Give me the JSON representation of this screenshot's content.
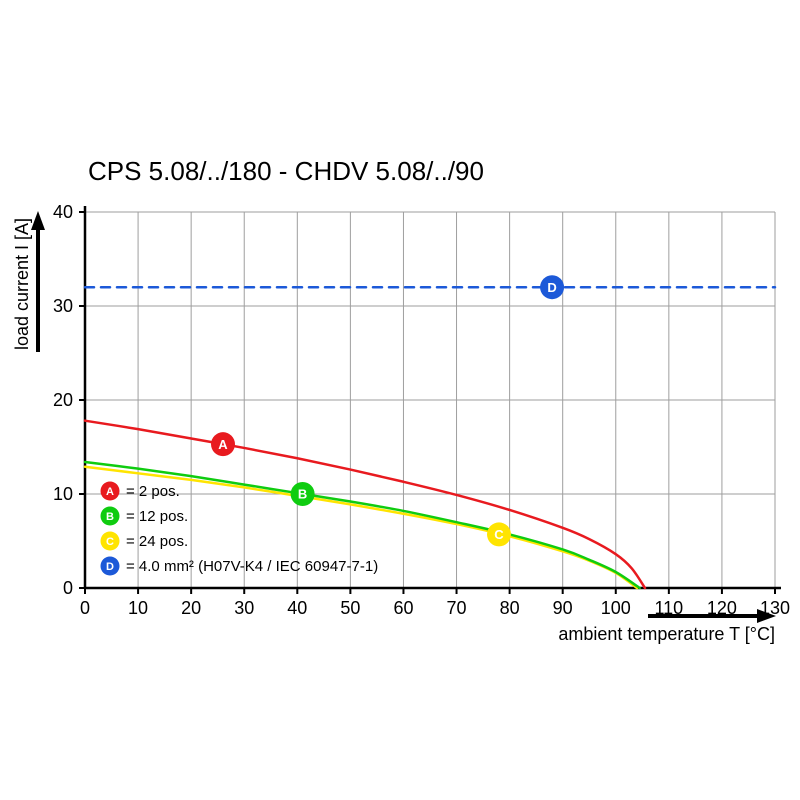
{
  "page": {
    "background": "#ffffff"
  },
  "chart_data": {
    "type": "line",
    "title": "CPS 5.08/../180 - CHDV 5.08/../90",
    "xlabel": "ambient temperature T [°C]",
    "ylabel": "load current I [A]",
    "xlim": [
      0,
      130
    ],
    "ylim": [
      0,
      40
    ],
    "xticks": [
      0,
      10,
      20,
      30,
      40,
      50,
      60,
      70,
      80,
      90,
      100,
      110,
      120,
      130
    ],
    "yticks": [
      0,
      10,
      20,
      30,
      40
    ],
    "grid": true,
    "grid_color": "#9e9e9e",
    "axis_color": "#000000",
    "marker_text_color": "#ffffff",
    "legend_position": "lower-left",
    "series": [
      {
        "id": "D",
        "legend_label": "= 4.0 mm² (H07V-K4 / IEC 60947-7-1)",
        "color": "#1c59d8",
        "line_style": "dashed",
        "marker": [
          88,
          32
        ],
        "points": [
          [
            0,
            32
          ],
          [
            130,
            32
          ]
        ]
      },
      {
        "id": "C",
        "legend_label": "= 24 pos.",
        "color": "#ffe400",
        "line_style": "solid",
        "marker": [
          78,
          5.7
        ],
        "points": [
          [
            0,
            12.9
          ],
          [
            10,
            12.2
          ],
          [
            20,
            11.5
          ],
          [
            30,
            10.7
          ],
          [
            40,
            9.8
          ],
          [
            50,
            8.9
          ],
          [
            60,
            7.9
          ],
          [
            70,
            6.8
          ],
          [
            80,
            5.5
          ],
          [
            90,
            3.9
          ],
          [
            95,
            2.9
          ],
          [
            100,
            1.6
          ],
          [
            104,
            0
          ]
        ]
      },
      {
        "id": "B",
        "legend_label": "= 12 pos.",
        "color": "#0fcc10",
        "line_style": "solid",
        "marker": [
          41,
          10
        ],
        "points": [
          [
            0,
            13.4
          ],
          [
            10,
            12.7
          ],
          [
            20,
            11.9
          ],
          [
            30,
            11.0
          ],
          [
            40,
            10.1
          ],
          [
            50,
            9.2
          ],
          [
            60,
            8.2
          ],
          [
            70,
            7.0
          ],
          [
            80,
            5.7
          ],
          [
            90,
            4.1
          ],
          [
            95,
            3.0
          ],
          [
            100,
            1.7
          ],
          [
            104.5,
            0
          ]
        ]
      },
      {
        "id": "A",
        "legend_label": "= 2 pos.",
        "color": "#e81a1f",
        "line_style": "solid",
        "marker": [
          26,
          15.3
        ],
        "points": [
          [
            0,
            17.8
          ],
          [
            10,
            16.9
          ],
          [
            20,
            15.9
          ],
          [
            30,
            14.9
          ],
          [
            40,
            13.8
          ],
          [
            50,
            12.6
          ],
          [
            60,
            11.3
          ],
          [
            70,
            9.9
          ],
          [
            80,
            8.3
          ],
          [
            90,
            6.4
          ],
          [
            95,
            5.2
          ],
          [
            100,
            3.6
          ],
          [
            103,
            2.1
          ],
          [
            105.5,
            0
          ]
        ]
      }
    ],
    "legend_order": [
      "A",
      "B",
      "C",
      "D"
    ]
  }
}
